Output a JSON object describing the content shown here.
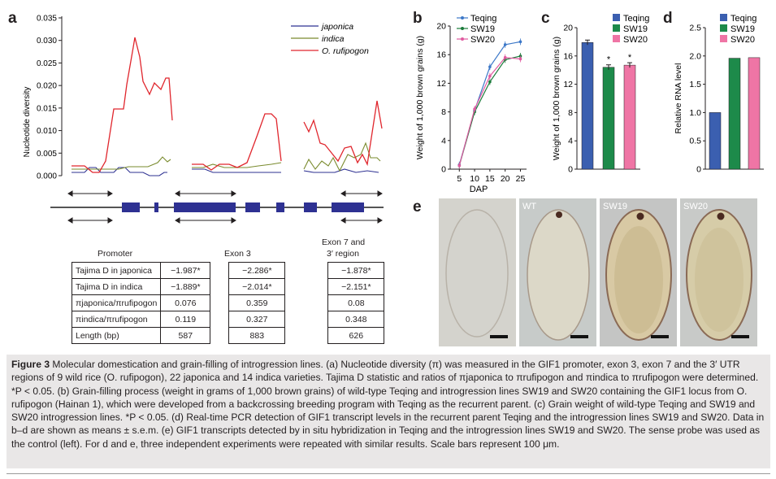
{
  "panels": {
    "a": "a",
    "b": "b",
    "c": "c",
    "d": "d",
    "e": "e"
  },
  "panel_a": {
    "ylabel": "Nucleotide diversity",
    "yticks": [
      "0.035",
      "0.030",
      "0.025",
      "0.020",
      "0.015",
      "0.010",
      "0.005",
      "0.000"
    ],
    "legend": [
      "japonica",
      "indica",
      "O. rufipogon"
    ],
    "colors": {
      "japonica": "#2e3192",
      "indica": "#7a8b2e",
      "rufipogon": "#e0262d",
      "exon": "#2e3192"
    }
  },
  "table": {
    "col_promoter": "Promoter",
    "col_exon3": "Exon 3",
    "col_exon7_l1": "Exon 7 and",
    "col_exon7_l2": "3′ region",
    "rows": [
      {
        "label": "Tajima D in japonica",
        "v1": "−1.987*",
        "v2": "−2.286*",
        "v3": "−1.878*"
      },
      {
        "label": "Tajima D in indica",
        "v1": "−1.889*",
        "v2": "−2.014*",
        "v3": "−2.151*"
      },
      {
        "label": "πjaponica/πrufipogon",
        "v1": "0.076",
        "v2": "0.359",
        "v3": "0.08"
      },
      {
        "label": "πindica/πrufipogon",
        "v1": "0.119",
        "v2": "0.327",
        "v3": "0.348"
      },
      {
        "label": "Length (bp)",
        "v1": "587",
        "v2": "883",
        "v3": "626"
      }
    ]
  },
  "chart_data": [
    {
      "panel": "a",
      "type": "line",
      "ylabel": "Nucleotide diversity",
      "ylim": [
        0,
        0.035
      ],
      "yticks": [
        0,
        0.005,
        0.01,
        0.015,
        0.02,
        0.025,
        0.03,
        0.035
      ],
      "legend": [
        "japonica",
        "indica",
        "O. rufipogon"
      ]
    },
    {
      "panel": "b",
      "type": "line",
      "xlabel": "DAP",
      "ylabel": "Weight of 1,000 brown grains (g)",
      "x": [
        5,
        10,
        15,
        20,
        25
      ],
      "xlim": [
        2,
        27
      ],
      "ylim": [
        0,
        20
      ],
      "yticks": [
        0,
        4,
        8,
        12,
        16,
        20
      ],
      "series": [
        {
          "name": "Teqing",
          "color": "#3c78c8",
          "values": [
            0.6,
            8.2,
            14.3,
            17.4,
            17.8
          ]
        },
        {
          "name": "SW19",
          "color": "#1a7a3a",
          "values": [
            0.5,
            8.0,
            12.2,
            15.3,
            15.8
          ]
        },
        {
          "name": "SW20",
          "color": "#e05aa0",
          "values": [
            0.5,
            8.4,
            13.0,
            15.6,
            15.4
          ]
        }
      ]
    },
    {
      "panel": "c",
      "type": "bar",
      "ylabel": "Weight of 1,000 brown grains (g)",
      "ylim": [
        0,
        20
      ],
      "yticks": [
        0,
        4,
        8,
        12,
        16,
        20
      ],
      "categories": [
        "Teqing",
        "SW19",
        "SW20"
      ],
      "values": [
        17.9,
        14.4,
        14.7
      ],
      "colors": [
        "#3b5fb0",
        "#1d8a4a",
        "#ef75a5"
      ],
      "annotations": [
        "",
        "*",
        "*"
      ]
    },
    {
      "panel": "d",
      "type": "bar",
      "ylabel": "Relative RNA level",
      "ylim": [
        0,
        2.5
      ],
      "yticks": [
        0,
        0.5,
        1.0,
        1.5,
        2.0,
        2.5
      ],
      "categories": [
        "Teqing",
        "SW19",
        "SW20"
      ],
      "values": [
        1.0,
        1.96,
        1.97
      ],
      "colors": [
        "#3b5fb0",
        "#1d8a4a",
        "#ef75a5"
      ]
    }
  ],
  "panel_b": {
    "xlabel": "DAP",
    "ylabel": "Weight of 1,000 brown grains (g)",
    "legend": [
      "Teqing",
      "SW19",
      "SW20"
    ]
  },
  "panel_c": {
    "ylabel": "Weight of 1,000 brown grains (g)",
    "legend": [
      "Teqing",
      "SW19",
      "SW20"
    ],
    "stars": [
      "*",
      "*"
    ]
  },
  "panel_d": {
    "ylabel": "Relative RNA level",
    "legend": [
      "Teqing",
      "SW19",
      "SW20"
    ]
  },
  "panel_e": {
    "labels": [
      "",
      "WT",
      "SW19",
      "SW20"
    ]
  },
  "caption": {
    "figure_label": "Figure 3",
    "text": "Molecular domestication and grain-filling of introgression lines. (a) Nucleotide diversity (π) was measured in the GIF1 promoter, exon 3, exon 7 and the 3′ UTR regions of 9 wild rice (O. rufipogon), 22 japonica and 14 indica varieties. Tajima D statistic and ratios of πjaponica to πrufipogon and πindica to πrufipogon were determined. *P < 0.05. (b) Grain-filling process (weight in grams of 1,000 brown grains) of wild-type Teqing and introgression lines SW19 and SW20 containing the GIF1 locus from O. rufipogon (Hainan 1), which were developed from a backcrossing breeding program with Teqing as the recurrent parent. (c) Grain weight of wild-type Teqing and SW19 and SW20 introgression lines. *P < 0.05. (d) Real-time PCR detection of GIF1 transcript levels in the recurrent parent Teqing and the introgression lines SW19 and SW20. Data in b–d are shown as means ± s.e.m. (e) GIF1 transcripts detected by in situ hybridization in Teqing and the introgression lines SW19 and SW20. The sense probe was used as the control (left). For d and e, three independent experiments were repeated with similar results. Scale bars represent 100 μm."
  }
}
